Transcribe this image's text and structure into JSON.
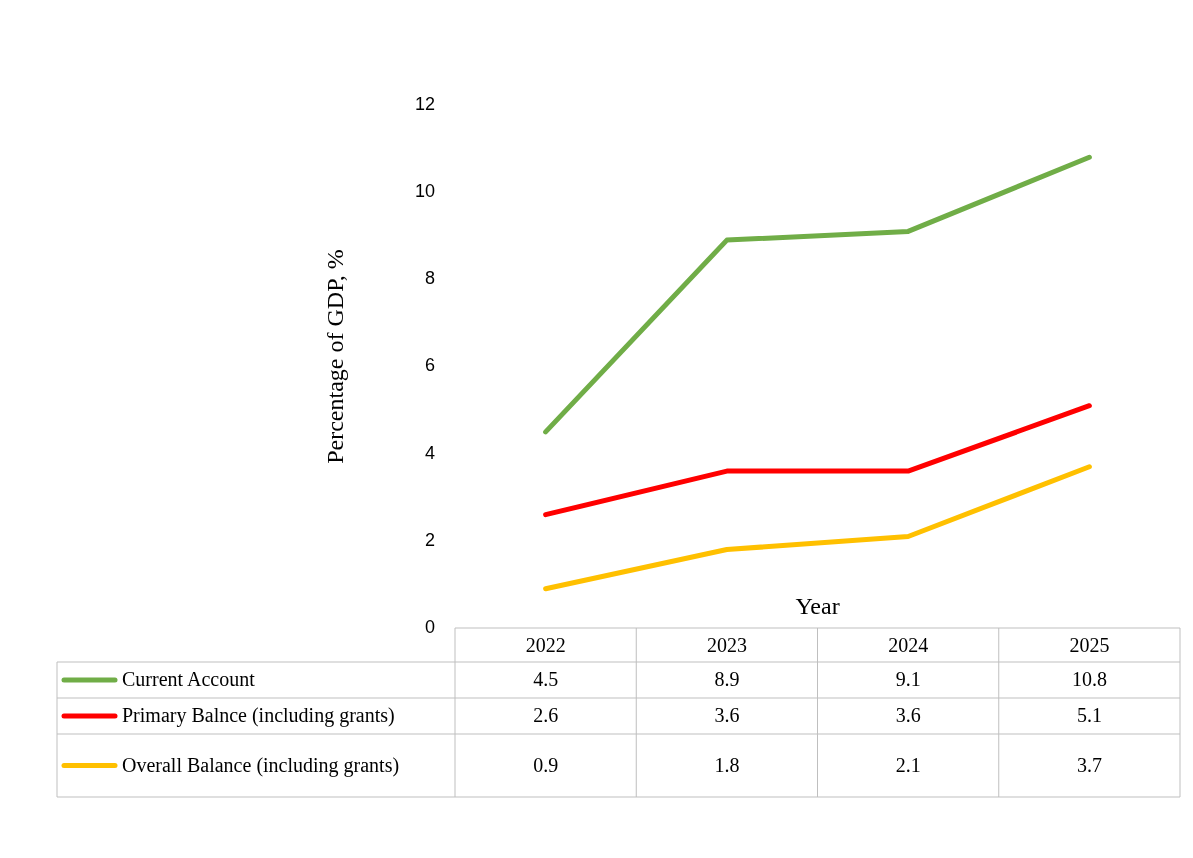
{
  "chart_data": {
    "type": "line",
    "xlabel": "Year",
    "ylabel": "Percentage of GDP, %",
    "categories": [
      "2022",
      "2023",
      "2024",
      "2025"
    ],
    "series": [
      {
        "name": "Current Account",
        "color": "#70ad47",
        "values": [
          4.5,
          8.9,
          9.1,
          10.8
        ]
      },
      {
        "name": "Primary Balnce (including grants)",
        "color": "#ff0000",
        "values": [
          2.6,
          3.6,
          3.6,
          5.1
        ]
      },
      {
        "name": "Overall Balance (including grants)",
        "color": "#ffc000",
        "values": [
          0.9,
          1.8,
          2.1,
          3.7
        ]
      }
    ],
    "ylim": [
      0,
      12
    ],
    "yticks": [
      0,
      2,
      4,
      6,
      8,
      10,
      12
    ],
    "grid": false,
    "legend": "bottom",
    "data_labels": true
  }
}
